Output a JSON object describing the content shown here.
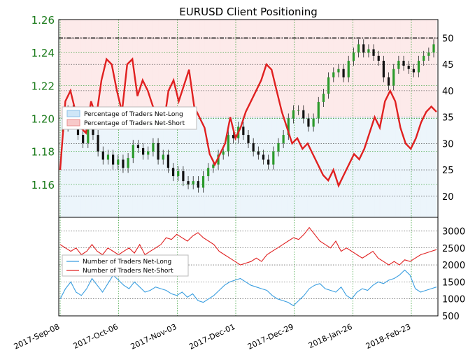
{
  "chart_data": [
    {
      "type": "candlestick",
      "title": "EURUSD Client Positioning",
      "left_axis": {
        "ylim": [
          1.14,
          1.26
        ],
        "ticks": [
          "1.16",
          "1.18",
          "1.20",
          "1.22",
          "1.24",
          "1.26"
        ],
        "tick_values": [
          1.16,
          1.18,
          1.2,
          1.22,
          1.24,
          1.26
        ],
        "color": "#1a7a1a"
      },
      "right_axis": {
        "ylim": [
          16,
          53.5
        ],
        "ticks": [
          "20",
          "25",
          "30",
          "35",
          "40",
          "45",
          "50"
        ],
        "tick_values": [
          20,
          25,
          30,
          35,
          40,
          45,
          50
        ]
      },
      "x_labels": [
        "2017-Sep-08",
        "2017-Oct-06",
        "2017-Nov-03",
        "2017-Dec-01",
        "2017-Dec-29",
        "2018-Jan-26",
        "2018-Feb-23"
      ],
      "grid": true,
      "legend": {
        "placement": "middle-left",
        "entries": [
          "Percentage of Traders Net-Long",
          "Percentage of Traders Net-Short"
        ]
      },
      "threshold_line": 50,
      "price_close": [
        1.195,
        1.205,
        1.198,
        1.19,
        1.185,
        1.195,
        1.19,
        1.18,
        1.175,
        1.178,
        1.172,
        1.175,
        1.17,
        1.176,
        1.184,
        1.182,
        1.178,
        1.18,
        1.185,
        1.175,
        1.178,
        1.17,
        1.165,
        1.168,
        1.162,
        1.16,
        1.162,
        1.158,
        1.165,
        1.17,
        1.172,
        1.178,
        1.18,
        1.19,
        1.188,
        1.195,
        1.19,
        1.185,
        1.18,
        1.178,
        1.175,
        1.172,
        1.18,
        1.185,
        1.19,
        1.2,
        1.205,
        1.205,
        1.2,
        1.195,
        1.2,
        1.21,
        1.215,
        1.225,
        1.228,
        1.23,
        1.225,
        1.235,
        1.24,
        1.245,
        1.24,
        1.242,
        1.238,
        1.235,
        1.225,
        1.22,
        1.23,
        1.235,
        1.232,
        1.23,
        1.228,
        1.235,
        1.238,
        1.24,
        1.245
      ],
      "series": [
        {
          "name": "Percentage of Traders Net-Short",
          "values": [
            25,
            38,
            40,
            36,
            33,
            32,
            38,
            35,
            42,
            46,
            45,
            40,
            36,
            45,
            46,
            39,
            42,
            40,
            37,
            36,
            33,
            40,
            42,
            38,
            41,
            44,
            37,
            35,
            33,
            28,
            26,
            28,
            30,
            35,
            31,
            33,
            36,
            38,
            40,
            42,
            45,
            44,
            40,
            36,
            33,
            30,
            31,
            29,
            30,
            28,
            26,
            24,
            23,
            25,
            22,
            24,
            26,
            28,
            27,
            29,
            32,
            35,
            33,
            38,
            40,
            38,
            33,
            30,
            29,
            31,
            34,
            36,
            37,
            36
          ],
          "note_series_order": "first value mapping reversed"
        },
        {
          "name": "Percentage of Traders Net-Long",
          "values": []
        }
      ]
    },
    {
      "type": "line",
      "ylim": [
        500,
        3400
      ],
      "ticks": [
        "500",
        "1000",
        "1500",
        "2000",
        "2500",
        "3000"
      ],
      "tick_values": [
        500,
        1000,
        1500,
        2000,
        2500,
        3000
      ],
      "legend": {
        "placement": "left",
        "entries": [
          "Number of Traders Net-Long",
          "Number of Traders Net-Short"
        ]
      },
      "series": [
        {
          "name": "Number of Traders Net-Short",
          "color": "#e02020",
          "values": [
            2600,
            2500,
            2400,
            2500,
            2300,
            2400,
            2600,
            2400,
            2300,
            2500,
            2400,
            2300,
            2400,
            2500,
            2350,
            2600,
            2300,
            2400,
            2500,
            2600,
            2800,
            2750,
            2900,
            2800,
            2700,
            2850,
            2950,
            2800,
            2700,
            2600,
            2400,
            2300,
            2200,
            2100,
            2000,
            2050,
            2100,
            2200,
            2100,
            2300,
            2400,
            2500,
            2600,
            2700,
            2800,
            2750,
            2900,
            3100,
            2900,
            2700,
            2600,
            2500,
            2700,
            2400,
            2500,
            2400,
            2300,
            2200,
            2300,
            2400,
            2200,
            2100,
            2000,
            2100,
            2000,
            2150,
            2100,
            2200,
            2300,
            2350,
            2400,
            2450
          ]
        },
        {
          "name": "Number of Traders Net-Long",
          "color": "#3a9ee0",
          "values": [
            1000,
            1300,
            1500,
            1200,
            1100,
            1300,
            1600,
            1400,
            1200,
            1450,
            1700,
            1550,
            1400,
            1300,
            1500,
            1350,
            1200,
            1250,
            1350,
            1300,
            1250,
            1150,
            1100,
            1200,
            1050,
            1150,
            950,
            900,
            1000,
            1100,
            1250,
            1400,
            1500,
            1550,
            1600,
            1500,
            1400,
            1350,
            1300,
            1250,
            1100,
            1000,
            950,
            900,
            800,
            950,
            1100,
            1300,
            1400,
            1450,
            1300,
            1250,
            1200,
            1350,
            1100,
            1000,
            1200,
            1300,
            1250,
            1400,
            1500,
            1450,
            1550,
            1600,
            1700,
            1850,
            1700,
            1300,
            1200,
            1250,
            1300,
            1350
          ]
        }
      ]
    }
  ]
}
